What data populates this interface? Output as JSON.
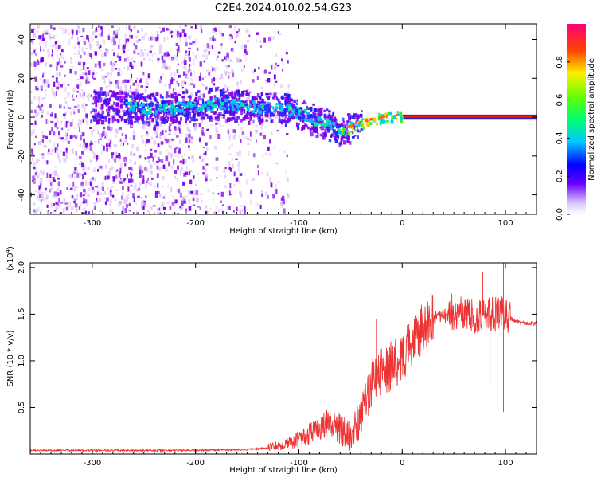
{
  "title": "C2E4.2024.010.02.54.G23",
  "colors": {
    "snr_line": "#ee3333",
    "axis": "#000000",
    "spectrum_purple": "#7a00e6",
    "spectrum_light": "#d9b8f7",
    "ridge": "#3366ff",
    "ridge_green": "#33dd44",
    "ridge_red": "#ff2200"
  },
  "chart_data": [
    {
      "type": "heatmap",
      "name": "spectrogram",
      "xlabel": "Height of straight line (km)",
      "ylabel": "Frequency (Hz)",
      "xlim": [
        -360,
        130
      ],
      "ylim": [
        -50,
        48
      ],
      "xticks": [
        -300,
        -200,
        -100,
        0,
        100
      ],
      "xtick_labels": [
        "-300",
        "-200",
        "-100",
        "0",
        "100"
      ],
      "yticks": [
        40,
        20,
        0,
        -20,
        -40
      ],
      "ytick_labels": [
        "40",
        "20",
        "0",
        "-20",
        "-40"
      ],
      "ridge": {
        "x": [
          -270,
          -240,
          -200,
          -180,
          -150,
          -120,
          -100,
          -80,
          -60,
          -45,
          -30,
          -10,
          0,
          30,
          60,
          100,
          130
        ],
        "freq": [
          6,
          5,
          6,
          8,
          6,
          5,
          3,
          -2,
          -6,
          -4,
          -1,
          1,
          1,
          0,
          0,
          0,
          0
        ]
      },
      "colorbar": {
        "label": "Normalized spectral amplitude",
        "range": [
          0.0,
          1.0
        ],
        "ticks": [
          0.0,
          0.2,
          0.4,
          0.6,
          0.8
        ],
        "tick_labels": [
          "0.0",
          "0.2",
          "0.4",
          "0.6",
          "0.8"
        ]
      }
    },
    {
      "type": "line",
      "name": "snr",
      "xlabel": "Height of straight line (km)",
      "ylabel": "SNR (10 * v/v)",
      "yscale_label": "(x10",
      "yscale_exp": "4",
      "yscale_close": ")",
      "xlim": [
        -360,
        130
      ],
      "ylim": [
        0,
        2.05
      ],
      "xticks": [
        -300,
        -200,
        -100,
        0,
        100
      ],
      "xtick_labels": [
        "-300",
        "-200",
        "-100",
        "0",
        "100"
      ],
      "yticks": [
        0.5,
        1.0,
        1.5,
        2.0
      ],
      "ytick_labels": [
        "0.5",
        "1.0",
        "1.5",
        "2.0"
      ],
      "series": [
        {
          "name": "SNR",
          "x": [
            -360,
            -300,
            -250,
            -200,
            -150,
            -120,
            -100,
            -80,
            -70,
            -60,
            -50,
            -40,
            -30,
            -20,
            -10,
            0,
            10,
            20,
            30,
            40,
            50,
            60,
            70,
            80,
            90,
            100,
            110,
            120,
            130
          ],
          "y": [
            0.03,
            0.03,
            0.03,
            0.03,
            0.04,
            0.06,
            0.12,
            0.22,
            0.3,
            0.2,
            0.12,
            0.3,
            0.75,
            0.9,
            0.95,
            1.05,
            1.2,
            1.35,
            1.45,
            1.48,
            1.5,
            1.5,
            1.48,
            1.48,
            1.5,
            1.5,
            1.42,
            1.4,
            1.4
          ],
          "spikes": [
            {
              "x": -25,
              "y": 1.45
            },
            {
              "x": 48,
              "y": 1.72
            },
            {
              "x": 78,
              "y": 1.95
            },
            {
              "x": 98,
              "y": 2.05
            },
            {
              "x": 98,
              "y": 0.45
            },
            {
              "x": 85,
              "y": 0.75
            },
            {
              "x": 65,
              "y": 1.65
            }
          ]
        }
      ]
    }
  ]
}
